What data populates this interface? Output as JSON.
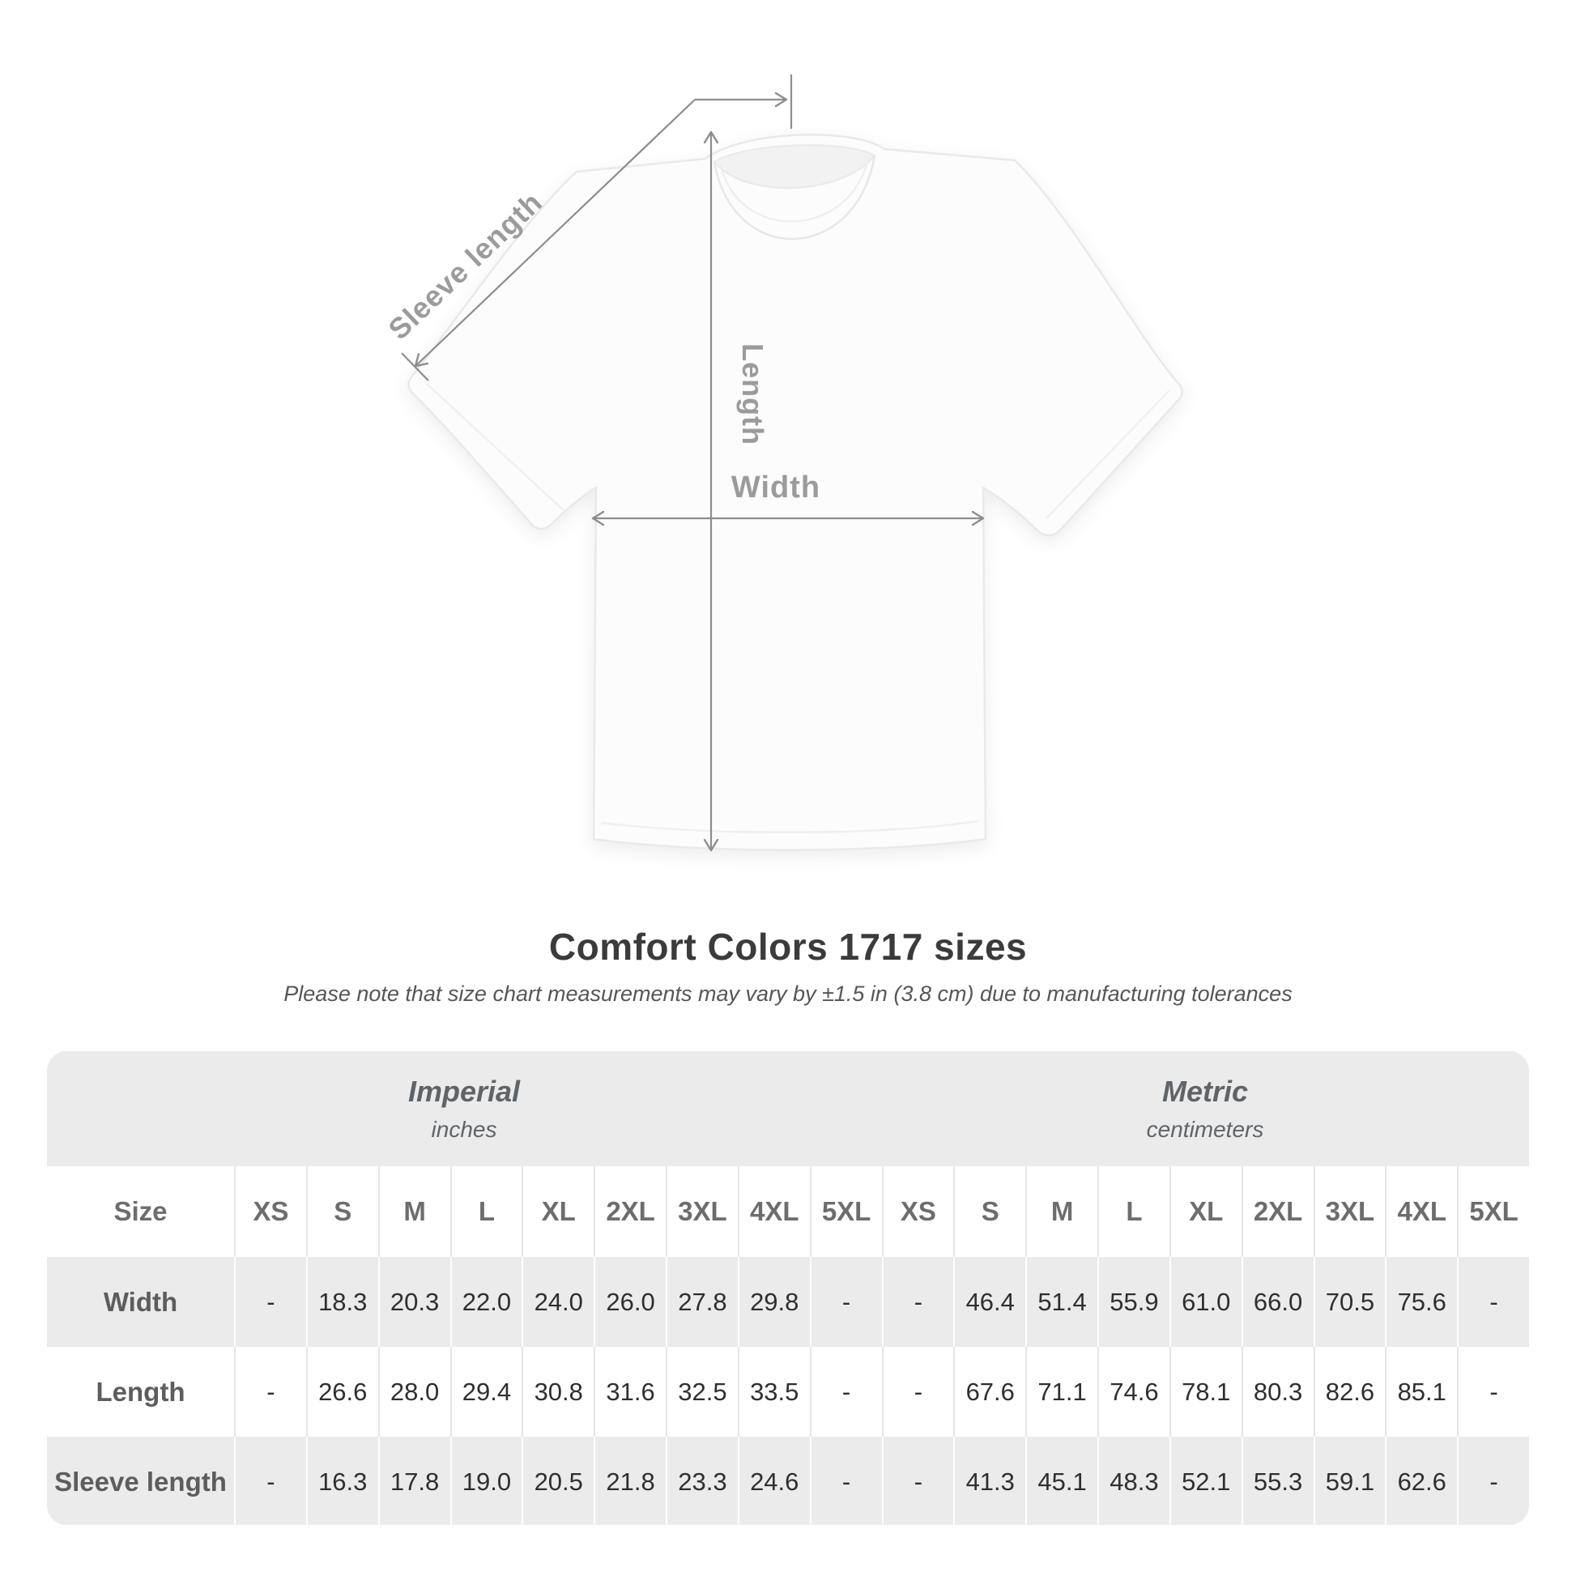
{
  "figure": {
    "sleeve_length_label": "Sleeve length",
    "length_label": "Length",
    "width_label": "Width"
  },
  "title": "Comfort Colors 1717 sizes",
  "note": "Please note that size chart measurements may vary by ±1.5 in (3.8 cm) due to manufacturing tolerances",
  "size_table": {
    "groups": [
      {
        "label": "Imperial",
        "unit": "inches"
      },
      {
        "label": "Metric",
        "unit": "centimeters"
      }
    ],
    "size_column_header": "Size",
    "sizes": [
      "XS",
      "S",
      "M",
      "L",
      "XL",
      "2XL",
      "3XL",
      "4XL",
      "5XL"
    ],
    "rows": [
      {
        "label": "Width",
        "imperial": [
          "-",
          "18.3",
          "20.3",
          "22.0",
          "24.0",
          "26.0",
          "27.8",
          "29.8",
          "-"
        ],
        "metric": [
          "-",
          "46.4",
          "51.4",
          "55.9",
          "61.0",
          "66.0",
          "70.5",
          "75.6",
          "-"
        ]
      },
      {
        "label": "Length",
        "imperial": [
          "-",
          "26.6",
          "28.0",
          "29.4",
          "30.8",
          "31.6",
          "32.5",
          "33.5",
          "-"
        ],
        "metric": [
          "-",
          "67.6",
          "71.1",
          "74.6",
          "78.1",
          "80.3",
          "82.6",
          "85.1",
          "-"
        ]
      },
      {
        "label": "Sleeve length",
        "imperial": [
          "-",
          "16.3",
          "17.8",
          "19.0",
          "20.5",
          "21.8",
          "23.3",
          "24.6",
          "-"
        ],
        "metric": [
          "-",
          "41.3",
          "45.1",
          "48.3",
          "52.1",
          "55.3",
          "59.1",
          "62.6",
          "-"
        ]
      }
    ]
  },
  "colors": {
    "dimension_line": "#8d8d8d",
    "dimension_label": "#9b9b9b",
    "table_band_gray": "#ebebeb",
    "title_text": "#3b3b3b"
  }
}
